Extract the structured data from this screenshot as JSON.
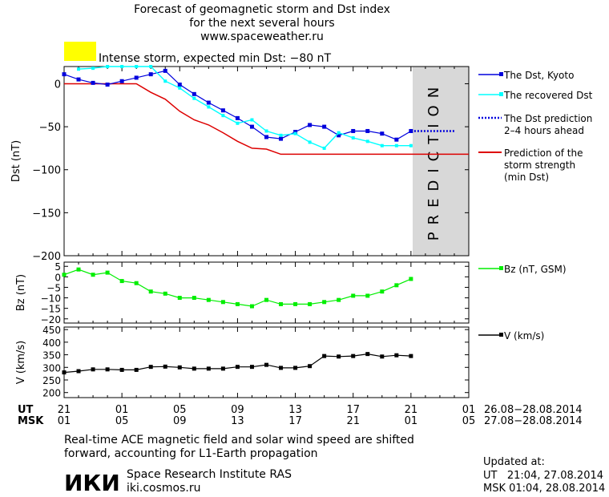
{
  "header": {
    "title_line1": "Forecast of geomagnetic storm and Dst index",
    "title_line2": "for the next several hours",
    "title_line3": "www.spaceweather.ru",
    "storm_label": "Intense storm, expected min Dst: −80 nT",
    "storm_color": "#ffff00"
  },
  "colors": {
    "dst_kyoto": "#0000dd",
    "dst_recovered": "#00ffff",
    "prediction_line": "#dd0000",
    "bz": "#00ee00",
    "speed": "#000000",
    "prediction_band": "#d8d8d8"
  },
  "chart_data": [
    {
      "type": "line",
      "ylabel": "Dst (nT)",
      "ylim": [
        -200,
        20
      ],
      "yticks": [
        0,
        -50,
        -100,
        -150,
        -200
      ],
      "ytick_labels": [
        "0",
        "−50",
        "−100",
        "−150",
        "−200"
      ],
      "xlim": [
        0,
        28
      ],
      "prediction_band_label": "PREDICTION",
      "prediction_band_range": [
        24,
        28
      ],
      "series": [
        {
          "name": "The Dst, Kyoto",
          "x": [
            0,
            1,
            2,
            3,
            4,
            5,
            6,
            7,
            8,
            9,
            10,
            11,
            12,
            13,
            14,
            15,
            16,
            17,
            18,
            19,
            20,
            21,
            22,
            23,
            24
          ],
          "values": [
            11,
            5,
            1,
            -1,
            3,
            7,
            11,
            15,
            -1,
            -12,
            -22,
            -31,
            -40,
            -50,
            -62,
            -64,
            -56,
            -48,
            -50,
            -60,
            -55,
            -55,
            -58,
            -65,
            -55
          ]
        },
        {
          "name": "The recovered Dst",
          "x": [
            1,
            2,
            3,
            4,
            5,
            6,
            7,
            8,
            9,
            10,
            11,
            12,
            13,
            14,
            15,
            16,
            17,
            18,
            19,
            20,
            21,
            22,
            23,
            24
          ],
          "values": [
            17,
            18,
            20,
            20,
            20,
            20,
            3,
            -5,
            -17,
            -27,
            -37,
            -46,
            -42,
            -55,
            -60,
            -58,
            -68,
            -75,
            -57,
            -63,
            -67,
            -72,
            -72,
            -72
          ]
        },
        {
          "name": "The Dst prediction 2–4 hours ahead",
          "x": [
            24,
            25,
            26,
            27
          ],
          "values": [
            -55,
            -55,
            -55,
            -55
          ]
        },
        {
          "name": "Prediction of the storm strength (min Dst)",
          "x": [
            0,
            5,
            6,
            7,
            8,
            9,
            10,
            11,
            12,
            13,
            14,
            15,
            16,
            17,
            18,
            19,
            20,
            21,
            22,
            23,
            24,
            25,
            26,
            27,
            28
          ],
          "values": [
            0,
            0,
            -10,
            -18,
            -32,
            -42,
            -48,
            -57,
            -67,
            -75,
            -76,
            -82,
            -82,
            -82,
            -82,
            -82,
            -82,
            -82,
            -82,
            -82,
            -82,
            -82,
            -82,
            -82,
            -82
          ]
        }
      ],
      "legend": [
        {
          "label_lines": [
            "The Dst, Kyoto"
          ],
          "style": "dst_kyoto"
        },
        {
          "label_lines": [
            "The recovered Dst"
          ],
          "style": "dst_recovered"
        },
        {
          "label_lines": [
            "The Dst prediction",
            "2–4 hours ahead"
          ],
          "style": "dotted"
        },
        {
          "label_lines": [
            "Prediction of the",
            "storm strength",
            "(min Dst)"
          ],
          "style": "prediction_line"
        }
      ]
    },
    {
      "type": "line",
      "ylabel": "Bz (nT)",
      "ylim": [
        -22,
        7
      ],
      "yticks": [
        5,
        0,
        -5,
        -10,
        -15,
        -20
      ],
      "ytick_labels": [
        "5",
        "0",
        "−5",
        "−10",
        "−15",
        "−20"
      ],
      "xlim": [
        0,
        28
      ],
      "series": [
        {
          "name": "Bz (nT, GSM)",
          "x": [
            0,
            1,
            2,
            3,
            4,
            5,
            6,
            7,
            8,
            9,
            10,
            11,
            12,
            13,
            14,
            15,
            16,
            17,
            18,
            19,
            20,
            21,
            22,
            23,
            24
          ],
          "values": [
            1,
            3.5,
            1,
            2,
            -2,
            -3,
            -7,
            -8,
            -10,
            -10,
            -11,
            -12,
            -13,
            -14,
            -11,
            -13,
            -13,
            -13,
            -12,
            -11,
            -9,
            -9,
            -7,
            -4,
            -1
          ]
        }
      ]
    },
    {
      "type": "line",
      "ylabel": "V (km/s)",
      "ylim": [
        180,
        460
      ],
      "yticks": [
        450,
        400,
        350,
        300,
        250,
        200
      ],
      "ytick_labels": [
        "450",
        "400",
        "350",
        "300",
        "250",
        "200"
      ],
      "xlim": [
        0,
        28
      ],
      "series": [
        {
          "name": "V (km/s)",
          "x": [
            0,
            1,
            2,
            3,
            4,
            5,
            6,
            7,
            8,
            9,
            10,
            11,
            12,
            13,
            14,
            15,
            16,
            17,
            18,
            19,
            20,
            21,
            22,
            23,
            24
          ],
          "values": [
            280,
            285,
            292,
            292,
            290,
            290,
            302,
            303,
            300,
            295,
            295,
            295,
            302,
            302,
            310,
            298,
            298,
            305,
            345,
            343,
            345,
            353,
            343,
            348,
            345
          ]
        }
      ]
    }
  ],
  "x_axis": {
    "ut_label": "UT",
    "msk_label": "MSK",
    "ut_ticks": [
      "21",
      "01",
      "05",
      "09",
      "13",
      "17",
      "21",
      "01"
    ],
    "msk_ticks": [
      "01",
      "05",
      "09",
      "13",
      "17",
      "21",
      "01",
      "05"
    ],
    "ut_range": "26.08−28.08.2014",
    "msk_range": "27.08−28.08.2014"
  },
  "footer": {
    "note_line1": "Real-time ACE magnetic field and solar wind speed are shifted",
    "note_line2": "forward, accounting for L1-Earth propagation",
    "logo_text": "ИКИ",
    "institute": "Space Research Institute RAS",
    "website": "iki.cosmos.ru",
    "updated_label": "Updated at:",
    "updated_ut": "UT   21:04, 27.08.2014",
    "updated_msk": "MSK 01:04, 28.08.2014"
  }
}
